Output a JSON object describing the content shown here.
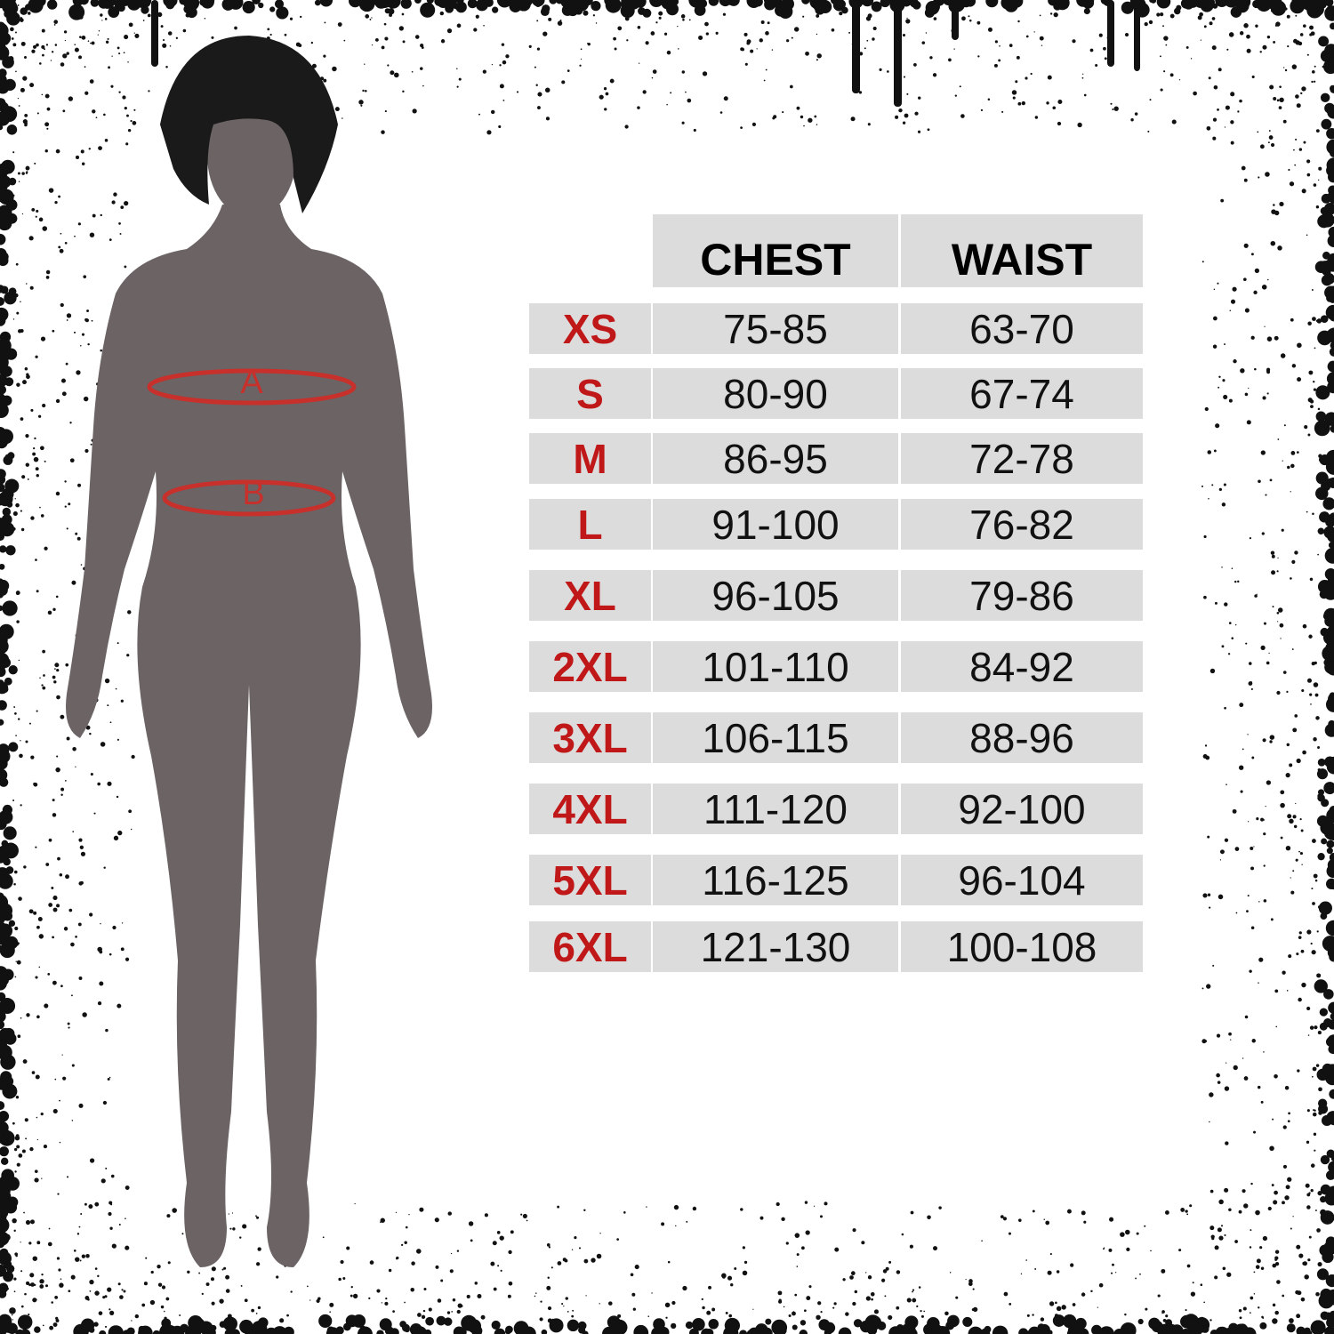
{
  "colors": {
    "size_label": "#c01818",
    "cell_bg": "#dcdcdc",
    "silhouette": "#6b6364",
    "measure_line": "#c8302c"
  },
  "figure": {
    "marker_a": "A",
    "marker_b": "B"
  },
  "table": {
    "headers": [
      "",
      "CHEST",
      "WAIST"
    ],
    "rows": [
      {
        "size": "XS",
        "chest": "75-85",
        "waist": "63-70"
      },
      {
        "size": "S",
        "chest": "80-90",
        "waist": "67-74"
      },
      {
        "size": "M",
        "chest": "86-95",
        "waist": "72-78"
      },
      {
        "size": "L",
        "chest": "91-100",
        "waist": "76-82"
      },
      {
        "size": "XL",
        "chest": "96-105",
        "waist": "79-86"
      },
      {
        "size": "2XL",
        "chest": "101-110",
        "waist": "84-92"
      },
      {
        "size": "3XL",
        "chest": "106-115",
        "waist": "88-96"
      },
      {
        "size": "4XL",
        "chest": "111-120",
        "waist": "92-100"
      },
      {
        "size": "5XL",
        "chest": "116-125",
        "waist": "96-104"
      },
      {
        "size": "6XL",
        "chest": "121-130",
        "waist": "100-108"
      }
    ]
  }
}
